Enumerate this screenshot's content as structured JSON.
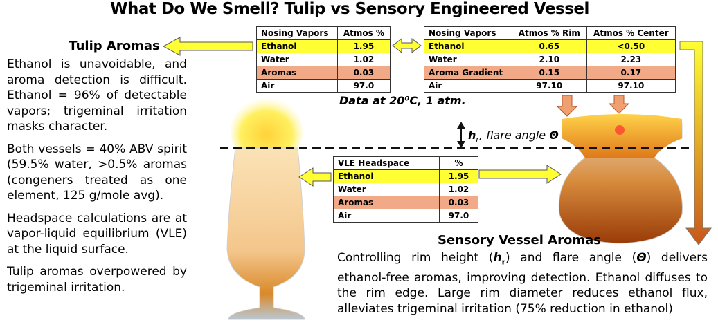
{
  "title": "What Do We Smell? Tulip vs Sensory Engineered Vessel",
  "tulip": {
    "heading": "Tulip Aromas",
    "paragraphs": [
      "Ethanol is unavoidable, and aroma detection is difficult. Ethanol = 96% of detectable vapors; trigeminal irritation masks character.",
      "Both vessels = 40% ABV spirit (59.5% water, >0.5%  aromas (congeners treated as one element, 125 g/mole avg).",
      "Headspace calculations are at vapor-liquid equilibrium (VLE) at the liquid surface.",
      "Tulip aromas overpowered by trigeminal irritation."
    ]
  },
  "tulip_table": {
    "header": [
      "Nosing Vapors",
      "Atmos %"
    ],
    "rows": [
      [
        "Ethanol",
        "1.95"
      ],
      [
        "Water",
        "1.02"
      ],
      [
        "Aromas",
        "0.03"
      ],
      [
        "Air",
        "97.0"
      ]
    ]
  },
  "vessel_table": {
    "header": [
      "Nosing Vapors",
      "Atmos % Rim",
      "Atmos  % Center"
    ],
    "rows": [
      [
        "Ethanol",
        "0.65",
        "<0.50"
      ],
      [
        "Water",
        "2.10",
        "2.23"
      ],
      [
        "Aroma Gradient",
        "0.15",
        "0.17"
      ],
      [
        "Air",
        "97.10",
        "97.10"
      ]
    ]
  },
  "vle_table": {
    "header": [
      "VLE Headspace",
      "%"
    ],
    "rows": [
      [
        "Ethanol",
        "1.95"
      ],
      [
        "Water",
        "1.02"
      ],
      [
        "Aromas",
        "0.03"
      ],
      [
        "Air",
        "97.0"
      ]
    ]
  },
  "note": "Data at 20⁰C, 1 atm.",
  "flare_label": [
    "h",
    "r",
    ", flare angle ",
    "Θ"
  ],
  "sensory": {
    "heading": "Sensory Vessel Aromas",
    "text": [
      "Controlling rim height (",
      "h",
      "r",
      ") and flare angle (",
      "Θ",
      ") delivers ethanol-free aromas, improving detection. Ethanol diffuses to the rim edge. Large rim diameter reduces ethanol flux, alleviates trigeminal irritation (75% reduction in ethanol)"
    ]
  }
}
